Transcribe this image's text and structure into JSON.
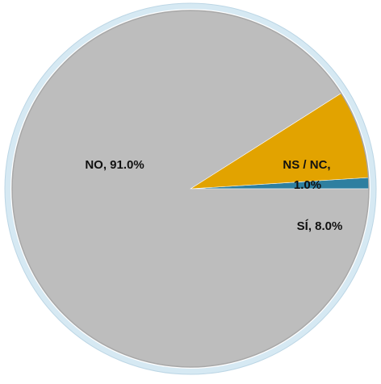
{
  "chart_data": {
    "type": "pie",
    "title": "",
    "slices": [
      {
        "label": "NS / NC",
        "value": 1.0,
        "display": "1.0%",
        "color": "#2E7FA0"
      },
      {
        "label": "SÍ",
        "value": 8.0,
        "display": "8.0%",
        "color": "#E2A300"
      },
      {
        "label": "NO",
        "value": 91.0,
        "display": "91.0%",
        "color": "#BDBDBD"
      }
    ],
    "start_angle_deg": 0,
    "direction": "counterclockwise",
    "legend": "none",
    "frame_ring_color": "#D6E9F3"
  },
  "labels": {
    "no": "NO, 91.0%",
    "ns_nc_line1": "NS / NC,",
    "ns_nc_line2": "1.0%",
    "si": "SÍ, 8.0%"
  }
}
